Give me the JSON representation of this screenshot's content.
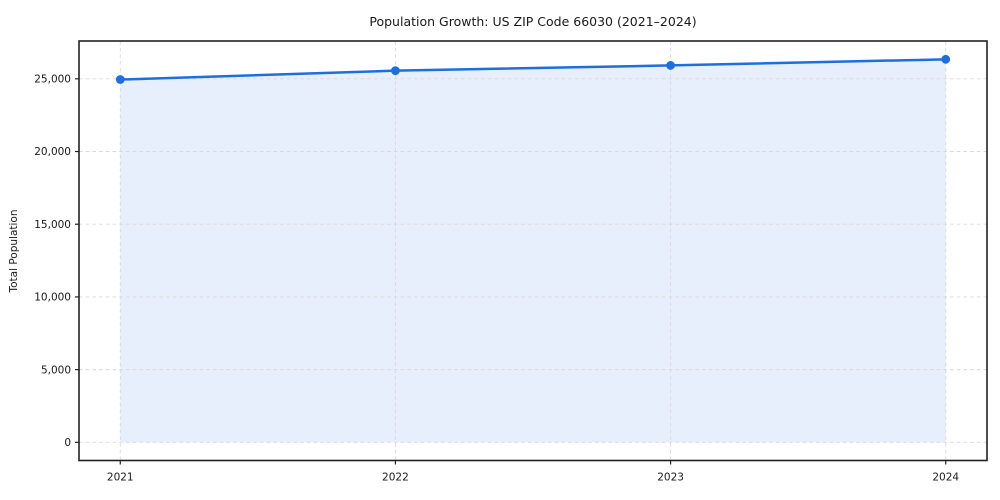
{
  "chart_data": {
    "type": "area",
    "title": "Population Growth: US ZIP Code 66030 (2021–2024)",
    "xlabel": "",
    "ylabel": "Total Population",
    "x": [
      2021,
      2022,
      2023,
      2024
    ],
    "series": [
      {
        "name": "Total Population",
        "values": [
          24950,
          25560,
          25920,
          26340
        ]
      }
    ],
    "x_ticks": [
      {
        "value": 2021,
        "label": "2021"
      },
      {
        "value": 2022,
        "label": "2022"
      },
      {
        "value": 2023,
        "label": "2023"
      },
      {
        "value": 2024,
        "label": "2024"
      }
    ],
    "y_ticks": [
      {
        "value": 0,
        "label": "0"
      },
      {
        "value": 5000,
        "label": "5,000"
      },
      {
        "value": 10000,
        "label": "10,000"
      },
      {
        "value": 15000,
        "label": "15,000"
      },
      {
        "value": 20000,
        "label": "20,000"
      },
      {
        "value": 25000,
        "label": "25,000"
      }
    ],
    "xlim": [
      2020.85,
      2024.15
    ],
    "ylim": [
      -1250,
      27600
    ],
    "grid": true,
    "legend": "none",
    "fill_from": 0,
    "colors": {
      "line": "#1f6edd",
      "marker": "#1f6edd",
      "fill": "rgba(31,110,221,0.11)",
      "grid": "#d9d9d9",
      "axis": "#222222",
      "text": "#1a1a1a",
      "background": "#ffffff"
    }
  }
}
